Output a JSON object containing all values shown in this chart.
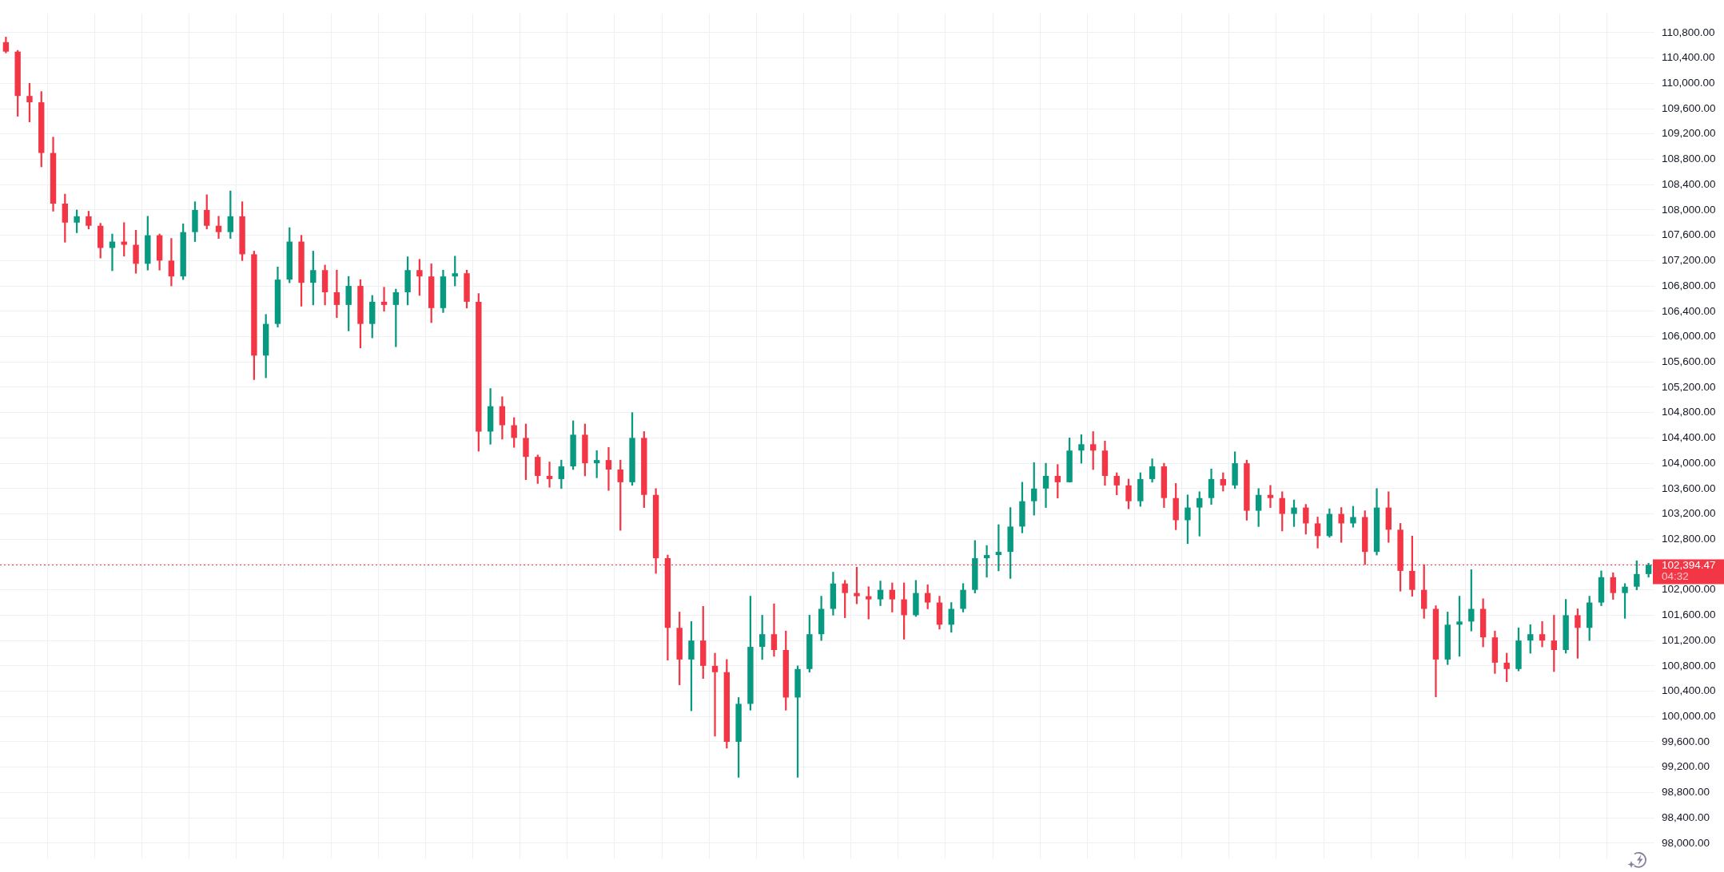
{
  "chart_data": {
    "type": "candlestick",
    "categories": [
      null,
      null,
      null,
      null,
      null,
      null,
      null,
      null,
      null,
      null,
      null,
      null,
      null,
      null,
      null,
      null,
      null,
      null,
      null,
      null,
      null,
      null,
      null,
      null,
      null,
      null,
      null,
      null,
      null,
      null,
      null,
      null,
      null,
      null,
      null,
      null,
      null,
      null,
      null,
      null,
      null,
      null,
      null,
      null,
      null,
      null,
      null,
      null,
      null,
      null,
      null,
      null,
      null,
      null,
      null,
      null,
      null,
      null,
      null,
      null,
      null,
      null,
      null,
      null,
      null,
      null,
      null,
      null,
      null,
      null,
      null,
      null,
      null,
      null,
      null,
      null,
      null,
      null,
      null,
      null,
      null,
      null,
      null,
      null,
      null,
      null,
      null,
      null,
      null,
      null,
      null,
      null,
      null,
      null,
      null,
      null,
      null,
      null,
      null,
      null,
      null,
      null,
      null,
      null,
      null,
      null,
      null,
      null,
      null,
      null,
      null,
      null,
      null,
      null,
      null,
      null,
      null,
      null,
      null,
      null,
      null,
      null,
      null,
      null,
      null,
      null,
      null,
      null,
      null,
      null,
      null,
      null,
      null,
      null,
      null,
      null,
      null,
      null,
      null,
      null
    ],
    "ohlc": [
      [
        110650,
        110730,
        110480,
        110500
      ],
      [
        110500,
        110520,
        109480,
        109800
      ],
      [
        109800,
        110000,
        109390,
        109700
      ],
      [
        109700,
        109870,
        108680,
        108900
      ],
      [
        108900,
        109150,
        107980,
        108100
      ],
      [
        108100,
        108250,
        107490,
        107800
      ],
      [
        107800,
        108000,
        107640,
        107900
      ],
      [
        107900,
        107980,
        107700,
        107750
      ],
      [
        107750,
        107790,
        107240,
        107400
      ],
      [
        107400,
        107620,
        107040,
        107500
      ],
      [
        107500,
        107800,
        107270,
        107450
      ],
      [
        107450,
        107680,
        107000,
        107150
      ],
      [
        107150,
        107900,
        107050,
        107600
      ],
      [
        107600,
        107620,
        107050,
        107200
      ],
      [
        107200,
        107550,
        106800,
        106950
      ],
      [
        106950,
        107780,
        106900,
        107650
      ],
      [
        107650,
        108130,
        107500,
        108000
      ],
      [
        108000,
        108240,
        107700,
        107750
      ],
      [
        107750,
        107900,
        107550,
        107650
      ],
      [
        107650,
        108300,
        107550,
        107900
      ],
      [
        107900,
        108130,
        107200,
        107300
      ],
      [
        107300,
        107350,
        105320,
        105700
      ],
      [
        105700,
        106350,
        105350,
        106200
      ],
      [
        106200,
        107100,
        106150,
        106900
      ],
      [
        106900,
        107720,
        106850,
        107500
      ],
      [
        107500,
        107600,
        106480,
        106850
      ],
      [
        106850,
        107350,
        106500,
        107050
      ],
      [
        107050,
        107130,
        106500,
        106700
      ],
      [
        106700,
        107050,
        106300,
        106500
      ],
      [
        106500,
        106950,
        106090,
        106800
      ],
      [
        106800,
        106900,
        105820,
        106200
      ],
      [
        106200,
        106650,
        105980,
        106550
      ],
      [
        106550,
        106780,
        106400,
        106500
      ],
      [
        106500,
        106750,
        105840,
        106700
      ],
      [
        106700,
        107260,
        106500,
        107050
      ],
      [
        107050,
        107220,
        106650,
        106950
      ],
      [
        106950,
        107150,
        106220,
        106450
      ],
      [
        106450,
        107050,
        106380,
        106950
      ],
      [
        106950,
        107270,
        106800,
        107000
      ],
      [
        107000,
        107050,
        106450,
        106550
      ],
      [
        106550,
        106680,
        104190,
        104500
      ],
      [
        104500,
        105180,
        104300,
        104900
      ],
      [
        104900,
        105050,
        104380,
        104600
      ],
      [
        104600,
        104720,
        104250,
        104400
      ],
      [
        104400,
        104620,
        103740,
        104100
      ],
      [
        104100,
        104130,
        103680,
        103800
      ],
      [
        103800,
        104020,
        103620,
        103750
      ],
      [
        103750,
        104050,
        103600,
        103950
      ],
      [
        103950,
        104670,
        103900,
        104450
      ],
      [
        104450,
        104620,
        103800,
        104000
      ],
      [
        104000,
        104200,
        103770,
        104050
      ],
      [
        104050,
        104250,
        103570,
        103900
      ],
      [
        103900,
        104050,
        102940,
        103700
      ],
      [
        103700,
        104800,
        103650,
        104400
      ],
      [
        104400,
        104500,
        103300,
        103500
      ],
      [
        103500,
        103600,
        102260,
        102500
      ],
      [
        102500,
        102550,
        100890,
        101400
      ],
      [
        101400,
        101650,
        100500,
        100900
      ],
      [
        100900,
        101500,
        100090,
        101200
      ],
      [
        101200,
        101740,
        100600,
        100800
      ],
      [
        100800,
        101000,
        99690,
        100700
      ],
      [
        100700,
        100900,
        99500,
        99600
      ],
      [
        99600,
        100300,
        99040,
        100200
      ],
      [
        100200,
        101900,
        100100,
        101100
      ],
      [
        101100,
        101600,
        100900,
        101300
      ],
      [
        101300,
        101780,
        100950,
        101050
      ],
      [
        101050,
        101350,
        100100,
        100300
      ],
      [
        100300,
        100800,
        99040,
        100750
      ],
      [
        100750,
        101600,
        100700,
        101300
      ],
      [
        101300,
        101900,
        101200,
        101700
      ],
      [
        101700,
        102280,
        101600,
        102100
      ],
      [
        102100,
        102150,
        101560,
        101950
      ],
      [
        101950,
        102360,
        101780,
        101900
      ],
      [
        101900,
        102050,
        101540,
        101850
      ],
      [
        101850,
        102140,
        101750,
        102000
      ],
      [
        102000,
        102110,
        101650,
        101850
      ],
      [
        101850,
        102110,
        101220,
        101600
      ],
      [
        101600,
        102150,
        101580,
        101950
      ],
      [
        101950,
        102080,
        101700,
        101800
      ],
      [
        101800,
        101900,
        101380,
        101450
      ],
      [
        101450,
        101800,
        101330,
        101700
      ],
      [
        101700,
        102100,
        101650,
        102000
      ],
      [
        102000,
        102780,
        101950,
        102500
      ],
      [
        102500,
        102700,
        102200,
        102550
      ],
      [
        102550,
        103030,
        102300,
        102600
      ],
      [
        102600,
        103300,
        102180,
        103000
      ],
      [
        103000,
        103700,
        102900,
        103400
      ],
      [
        103400,
        104010,
        103180,
        103600
      ],
      [
        103600,
        104000,
        103300,
        103800
      ],
      [
        103800,
        103980,
        103450,
        103700
      ],
      [
        103700,
        104400,
        103700,
        104200
      ],
      [
        104200,
        104450,
        104000,
        104300
      ],
      [
        104300,
        104500,
        103900,
        104200
      ],
      [
        104200,
        104350,
        103650,
        103800
      ],
      [
        103800,
        103850,
        103500,
        103650
      ],
      [
        103650,
        103750,
        103280,
        103400
      ],
      [
        103400,
        103850,
        103320,
        103750
      ],
      [
        103750,
        104070,
        103700,
        103950
      ],
      [
        103950,
        104000,
        103300,
        103450
      ],
      [
        103450,
        103680,
        102950,
        103100
      ],
      [
        103100,
        103500,
        102730,
        103300
      ],
      [
        103300,
        103550,
        102850,
        103450
      ],
      [
        103450,
        103910,
        103350,
        103750
      ],
      [
        103750,
        103850,
        103560,
        103650
      ],
      [
        103650,
        104180,
        103600,
        104000
      ],
      [
        104000,
        104050,
        103100,
        103250
      ],
      [
        103250,
        103600,
        103000,
        103500
      ],
      [
        103500,
        103650,
        103300,
        103450
      ],
      [
        103450,
        103550,
        102930,
        103200
      ],
      [
        103200,
        103420,
        103000,
        103300
      ],
      [
        103300,
        103350,
        102880,
        103050
      ],
      [
        103050,
        103150,
        102660,
        102850
      ],
      [
        102850,
        103280,
        102830,
        103200
      ],
      [
        103200,
        103300,
        102750,
        103050
      ],
      [
        103050,
        103320,
        102990,
        103150
      ],
      [
        103150,
        103250,
        102400,
        102600
      ],
      [
        102600,
        103600,
        102550,
        103300
      ],
      [
        103300,
        103550,
        102750,
        102950
      ],
      [
        102950,
        103050,
        101980,
        102300
      ],
      [
        102300,
        102850,
        101900,
        102000
      ],
      [
        102000,
        102400,
        101550,
        101700
      ],
      [
        101700,
        101750,
        100310,
        100900
      ],
      [
        100900,
        101650,
        100820,
        101450
      ],
      [
        101450,
        101900,
        100950,
        101500
      ],
      [
        101500,
        102320,
        101350,
        101700
      ],
      [
        101700,
        101860,
        101100,
        101250
      ],
      [
        101250,
        101350,
        100680,
        100850
      ],
      [
        100850,
        101000,
        100550,
        100750
      ],
      [
        100750,
        101400,
        100720,
        101200
      ],
      [
        101200,
        101450,
        101000,
        101300
      ],
      [
        101300,
        101500,
        101100,
        101200
      ],
      [
        101200,
        101600,
        100710,
        101050
      ],
      [
        101050,
        101850,
        101000,
        101600
      ],
      [
        101600,
        101700,
        100920,
        101400
      ],
      [
        101400,
        101900,
        101200,
        101800
      ],
      [
        101800,
        102300,
        101750,
        102200
      ],
      [
        102200,
        102270,
        101850,
        101950
      ],
      [
        101950,
        102100,
        101550,
        102050
      ],
      [
        102050,
        102460,
        102000,
        102250
      ],
      [
        102250,
        102420,
        102200,
        102394.47
      ]
    ],
    "colors": [
      "#f23645",
      "#f23645",
      "#f23645",
      "#f23645",
      "#f23645",
      "#f23645",
      "#089981",
      "#f23645",
      "#f23645",
      "#089981",
      "#f23645",
      "#f23645",
      "#089981",
      "#f23645",
      "#f23645",
      "#089981",
      "#089981",
      "#f23645",
      "#f23645",
      "#089981",
      "#f23645",
      "#f23645",
      "#089981",
      "#089981",
      "#089981",
      "#f23645",
      "#089981",
      "#f23645",
      "#f23645",
      "#089981",
      "#f23645",
      "#089981",
      "#f23645",
      "#089981",
      "#089981",
      "#f23645",
      "#f23645",
      "#089981",
      "#089981",
      "#f23645",
      "#f23645",
      "#089981",
      "#f23645",
      "#f23645",
      "#f23645",
      "#f23645",
      "#f23645",
      "#089981",
      "#089981",
      "#f23645",
      "#089981",
      "#f23645",
      "#f23645",
      "#089981",
      "#f23645",
      "#f23645",
      "#f23645",
      "#f23645",
      "#089981",
      "#f23645",
      "#f23645",
      "#f23645",
      "#089981",
      "#089981",
      "#089981",
      "#f23645",
      "#f23645",
      "#089981",
      "#089981",
      "#089981",
      "#089981",
      "#f23645",
      "#f23645",
      "#f23645",
      "#089981",
      "#f23645",
      "#f23645",
      "#089981",
      "#f23645",
      "#f23645",
      "#089981",
      "#089981",
      "#089981",
      "#089981",
      "#089981",
      "#089981",
      "#089981",
      "#089981",
      "#089981",
      "#f23645",
      "#089981",
      "#089981",
      "#f23645",
      "#f23645",
      "#f23645",
      "#f23645",
      "#089981",
      "#089981",
      "#f23645",
      "#f23645",
      "#089981",
      "#089981",
      "#089981",
      "#f23645",
      "#089981",
      "#f23645",
      "#089981",
      "#f23645",
      "#f23645",
      "#089981",
      "#f23645",
      "#f23645",
      "#089981",
      "#f23645",
      "#089981",
      "#f23645",
      "#089981",
      "#f23645",
      "#f23645",
      "#f23645",
      "#f23645",
      "#f23645",
      "#089981",
      "#089981",
      "#089981",
      "#f23645",
      "#f23645",
      "#f23645",
      "#089981",
      "#089981",
      "#f23645",
      "#f23645",
      "#089981",
      "#f23645",
      "#089981",
      "#089981",
      "#f23645",
      "#089981",
      "#089981",
      "#089981"
    ],
    "ylim": [
      97760,
      111100
    ],
    "yticks": [
      {
        "value": 98000,
        "label": "98,000.00"
      },
      {
        "value": 98400,
        "label": "98,400.00"
      },
      {
        "value": 98800,
        "label": "98,800.00"
      },
      {
        "value": 99200,
        "label": "99,200.00"
      },
      {
        "value": 99600,
        "label": "99,600.00"
      },
      {
        "value": 100000,
        "label": "100,000.00"
      },
      {
        "value": 100400,
        "label": "100,400.00"
      },
      {
        "value": 100800,
        "label": "100,800.00"
      },
      {
        "value": 101200,
        "label": "101,200.00"
      },
      {
        "value": 101600,
        "label": "101,600.00"
      },
      {
        "value": 102000,
        "label": "102,000.00"
      },
      {
        "value": 102400,
        "label": null
      },
      {
        "value": 102800,
        "label": "102,800.00"
      },
      {
        "value": 103200,
        "label": "103,200.00"
      },
      {
        "value": 103600,
        "label": "103,600.00"
      },
      {
        "value": 104000,
        "label": "104,000.00"
      },
      {
        "value": 104400,
        "label": "104,400.00"
      },
      {
        "value": 104800,
        "label": "104,800.00"
      },
      {
        "value": 105200,
        "label": "105,200.00"
      },
      {
        "value": 105600,
        "label": "105,600.00"
      },
      {
        "value": 106000,
        "label": "106,000.00"
      },
      {
        "value": 106400,
        "label": "106,400.00"
      },
      {
        "value": 106800,
        "label": "106,800.00"
      },
      {
        "value": 107200,
        "label": "107,200.00"
      },
      {
        "value": 107600,
        "label": "107,600.00"
      },
      {
        "value": 108000,
        "label": "108,000.00"
      },
      {
        "value": 108400,
        "label": "108,400.00"
      },
      {
        "value": 108800,
        "label": "108,800.00"
      },
      {
        "value": 109200,
        "label": "109,200.00"
      },
      {
        "value": 109600,
        "label": "109,600.00"
      },
      {
        "value": 110000,
        "label": "110,000.00"
      },
      {
        "value": 110400,
        "label": "110,400.00"
      },
      {
        "value": 110800,
        "label": "110,800.00"
      }
    ],
    "grid": true,
    "tick_labels": "y",
    "ref_lines": [
      {
        "axis": "y",
        "value": 102394.47,
        "label": "102,394.47",
        "color": "#f23645",
        "line_style": "dotted"
      }
    ],
    "annotations": [
      "04:32"
    ]
  }
}
